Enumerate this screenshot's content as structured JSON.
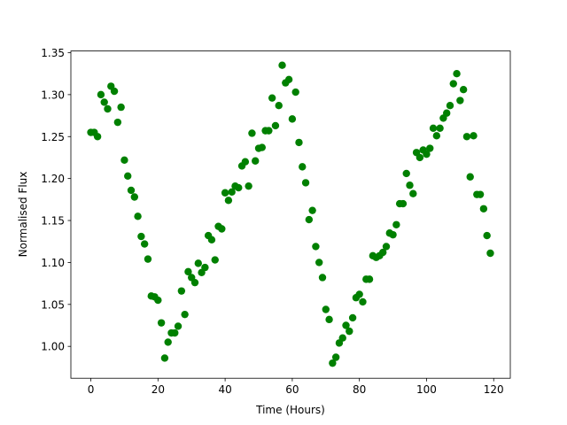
{
  "chart_data": {
    "type": "scatter",
    "xlabel": "Time (Hours)",
    "ylabel": "Normalised Flux",
    "color": "#008000",
    "x": [
      0,
      1,
      2,
      3,
      4,
      5,
      6,
      7,
      8,
      9,
      10,
      11,
      12,
      13,
      14,
      15,
      16,
      17,
      18,
      19,
      20,
      21,
      22,
      23,
      24,
      25,
      26,
      27,
      28,
      29,
      30,
      31,
      32,
      33,
      34,
      35,
      36,
      37,
      38,
      39,
      40,
      41,
      42,
      43,
      44,
      45,
      46,
      47,
      48,
      49,
      50,
      51,
      52,
      53,
      54,
      55,
      56,
      57,
      58,
      59,
      60,
      61,
      62,
      63,
      64,
      65,
      66,
      67,
      68,
      69,
      70,
      71,
      72,
      73,
      74,
      75,
      76,
      77,
      78,
      79,
      80,
      81,
      82,
      83,
      84,
      85,
      86,
      87,
      88,
      89,
      90,
      91,
      92,
      93,
      94,
      95,
      96,
      97,
      98,
      99,
      100,
      101,
      102,
      103,
      104,
      105,
      106,
      107,
      108,
      109,
      110,
      111,
      112,
      113,
      114,
      115,
      116,
      117,
      118,
      119
    ],
    "values": [
      1.255,
      1.255,
      1.25,
      1.3,
      1.291,
      1.283,
      1.31,
      1.304,
      1.267,
      1.285,
      1.222,
      1.203,
      1.186,
      1.178,
      1.155,
      1.131,
      1.122,
      1.104,
      1.06,
      1.059,
      1.055,
      1.028,
      0.986,
      1.005,
      1.016,
      1.016,
      1.024,
      1.066,
      1.038,
      1.089,
      1.082,
      1.076,
      1.099,
      1.088,
      1.094,
      1.132,
      1.127,
      1.103,
      1.143,
      1.14,
      1.183,
      1.174,
      1.184,
      1.191,
      1.189,
      1.215,
      1.22,
      1.191,
      1.254,
      1.221,
      1.236,
      1.237,
      1.257,
      1.257,
      1.296,
      1.263,
      1.287,
      1.335,
      1.314,
      1.318,
      1.271,
      1.303,
      1.243,
      1.214,
      1.195,
      1.151,
      1.162,
      1.119,
      1.1,
      1.082,
      1.044,
      1.032,
      0.98,
      0.987,
      1.004,
      1.01,
      1.025,
      1.018,
      1.034,
      1.058,
      1.062,
      1.053,
      1.08,
      1.08,
      1.108,
      1.106,
      1.108,
      1.112,
      1.119,
      1.135,
      1.133,
      1.145,
      1.17,
      1.17,
      1.206,
      1.192,
      1.182,
      1.231,
      1.225,
      1.234,
      1.229,
      1.236,
      1.26,
      1.251,
      1.26,
      1.272,
      1.278,
      1.287,
      1.313,
      1.325,
      1.293,
      1.306,
      1.25,
      1.202,
      1.251,
      1.181,
      1.181,
      1.164,
      1.132,
      1.111
    ],
    "xlim": [
      -5.95,
      124.95
    ],
    "xticks": [
      0,
      20,
      40,
      60,
      80,
      100,
      120
    ],
    "ylim": [
      0.962,
      1.352
    ],
    "yticks": [
      {
        "value": 1.0,
        "label": "1.00"
      },
      {
        "value": 1.05,
        "label": "1.05"
      },
      {
        "value": 1.1,
        "label": "1.10"
      },
      {
        "value": 1.15,
        "label": "1.15"
      },
      {
        "value": 1.2,
        "label": "1.20"
      },
      {
        "value": 1.25,
        "label": "1.25"
      },
      {
        "value": 1.3,
        "label": "1.30"
      },
      {
        "value": 1.35,
        "label": "1.35"
      }
    ]
  }
}
